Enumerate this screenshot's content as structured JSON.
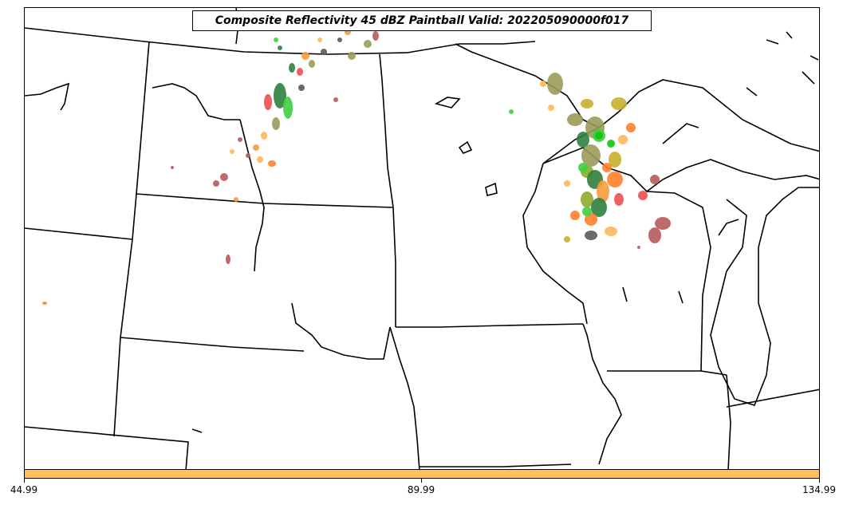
{
  "title": "Composite Reflectivity 45 dBZ Paintball Valid: 202205090000f017",
  "colorbar": {
    "color": "#ffc15a",
    "tick_labels": [
      "44.99",
      "89.99",
      "134.99"
    ]
  },
  "colors": {
    "boundary": "#000000",
    "paintball_palette": [
      "#b85a5a",
      "#f04f4f",
      "#3fcf3f",
      "#2f7f3f",
      "#9b9b5a",
      "#f59c3c",
      "#ffb75a",
      "#ff7f2a",
      "#c7b02c",
      "#5a5a5a",
      "#12c312",
      "#8faa2a"
    ]
  }
}
